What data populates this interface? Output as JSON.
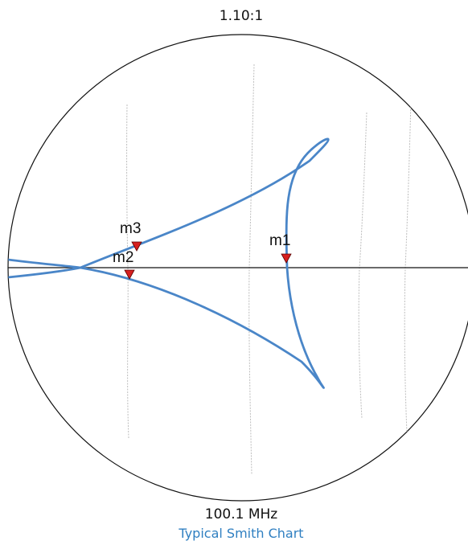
{
  "header": {
    "value": "1.10:1"
  },
  "footer": {
    "value": "100.1 MHz",
    "caption": "Typical Smith Chart"
  },
  "chart_data": {
    "type": "smith",
    "series": [
      {
        "color": "#4a86c8"
      }
    ],
    "markers": [
      {
        "label": "m1",
        "color": "#d62020"
      },
      {
        "label": "m2",
        "color": "#d62020"
      },
      {
        "label": "m3",
        "color": "#d62020"
      }
    ],
    "grid": true
  }
}
